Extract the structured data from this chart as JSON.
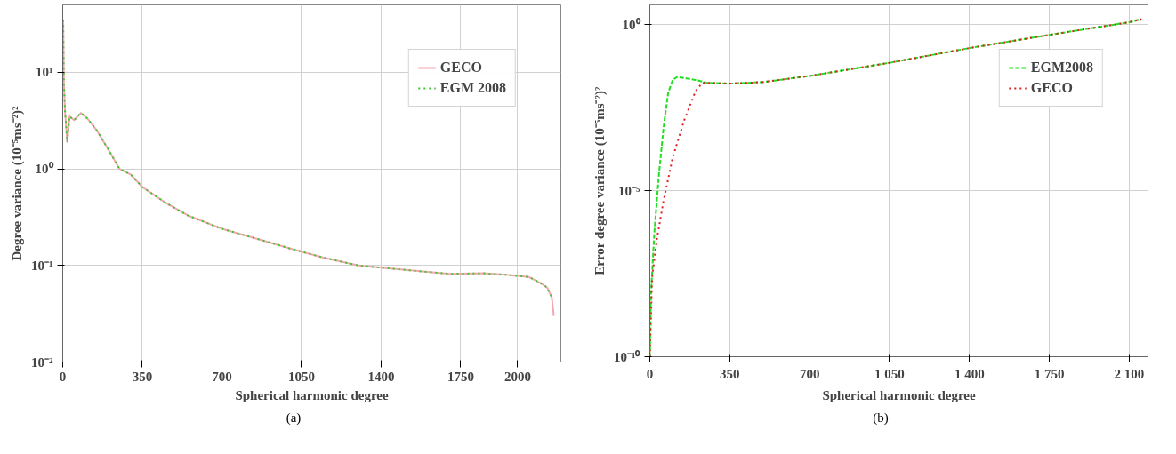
{
  "chart_data": [
    {
      "type": "line",
      "xlabel": "Spherical harmonic degree",
      "ylabel": "Degree variance (10⁻⁵ms⁻²)²",
      "annotations": [
        "(a)"
      ],
      "log": "y",
      "grid": true,
      "legend": "top right",
      "xlim": [
        0,
        2190
      ],
      "xticks": [
        0,
        350,
        700,
        1050,
        1400,
        1750,
        2000
      ],
      "ylim": [
        0.01,
        50
      ],
      "yticks": [
        {
          "value": 0.01,
          "label": "10⁻²"
        },
        {
          "value": 0.1,
          "label": "10⁻¹"
        },
        {
          "value": 1,
          "label": "10⁰"
        },
        {
          "value": 10,
          "label": "10¹"
        }
      ],
      "series": [
        {
          "name": "GECO",
          "color": "#f4a6b0",
          "line_style": "solid",
          "x": [
            2,
            5,
            10,
            20,
            30,
            50,
            80,
            110,
            150,
            200,
            250,
            300,
            350,
            450,
            550,
            700,
            850,
            1000,
            1150,
            1300,
            1400,
            1550,
            1700,
            1850,
            1950,
            2050,
            2100,
            2130,
            2150,
            2159
          ],
          "values": [
            35,
            8,
            4,
            1.9,
            3.5,
            3.2,
            3.8,
            3.3,
            2.5,
            1.6,
            1.0,
            0.87,
            0.65,
            0.45,
            0.33,
            0.24,
            0.19,
            0.15,
            0.12,
            0.1,
            0.095,
            0.088,
            0.082,
            0.083,
            0.08,
            0.076,
            0.066,
            0.059,
            0.047,
            0.03
          ]
        },
        {
          "name": "EGM 2008",
          "color": "#3cc82a",
          "line_style": "dotted",
          "x": [
            2,
            5,
            10,
            20,
            30,
            50,
            80,
            110,
            150,
            200,
            250,
            300,
            350,
            450,
            550,
            700,
            850,
            1000,
            1150,
            1300,
            1400,
            1550,
            1700,
            1850,
            1950,
            2050,
            2100,
            2130,
            2150
          ],
          "values": [
            35,
            8,
            4,
            1.9,
            3.5,
            3.2,
            3.8,
            3.3,
            2.5,
            1.6,
            1.0,
            0.87,
            0.65,
            0.45,
            0.33,
            0.24,
            0.19,
            0.15,
            0.12,
            0.1,
            0.095,
            0.088,
            0.082,
            0.083,
            0.08,
            0.076,
            0.066,
            0.059,
            0.047
          ]
        }
      ]
    },
    {
      "type": "line",
      "xlabel": "Spherical harmonic degree",
      "ylabel": "Error degree variance (10⁻⁵ms⁻²)²",
      "annotations": [
        "(b)"
      ],
      "log": "y",
      "grid": true,
      "legend": "top right",
      "xlim": [
        0,
        2182
      ],
      "xticks": [
        0,
        350,
        700,
        {
          "value": 1050,
          "label": "1 050"
        },
        {
          "value": 1400,
          "label": "1 400"
        },
        {
          "value": 1750,
          "label": "1 750"
        },
        {
          "value": 2100,
          "label": "2 100"
        }
      ],
      "ylim": [
        1e-10,
        4
      ],
      "yticks": [
        {
          "value": 1e-10,
          "label": "10⁻¹⁰"
        },
        {
          "value": 1e-05,
          "label": "10⁻⁵"
        },
        {
          "value": 1,
          "label": "10⁰"
        }
      ],
      "series": [
        {
          "name": "EGM2008",
          "color": "#22dd22",
          "line_style": "dashed",
          "x": [
            0,
            5,
            20,
            40,
            60,
            80,
            100,
            120,
            200,
            250,
            350,
            500,
            700,
            1050,
            1400,
            1750,
            2100,
            2150
          ],
          "values": [
            1e-10,
            8e-09,
            5.8e-07,
            3.2e-05,
            0.0008,
            0.0087,
            0.022,
            0.027,
            0.022,
            0.018,
            0.017,
            0.019,
            0.029,
            0.072,
            0.2,
            0.5,
            1.2,
            1.48
          ]
        },
        {
          "name": "GECO",
          "color": "#e02020",
          "line_style": "dotted",
          "x": [
            0,
            10,
            30,
            60,
            100,
            150,
            200,
            230,
            250,
            350,
            500,
            700,
            1050,
            1400,
            1750,
            2100,
            2150,
            2160
          ],
          "values": [
            1e-10,
            2.5e-08,
            3.2e-07,
            5e-06,
            0.0001,
            0.0013,
            0.01,
            0.018,
            0.018,
            0.017,
            0.019,
            0.029,
            0.072,
            0.2,
            0.5,
            1.2,
            1.48,
            1.2
          ]
        }
      ]
    }
  ]
}
